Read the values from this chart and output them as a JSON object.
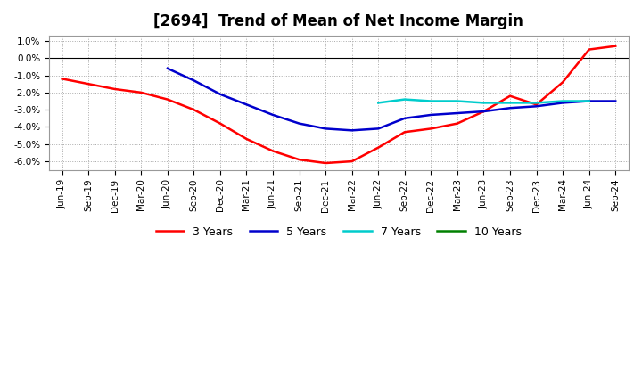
{
  "title": "[2694]  Trend of Mean of Net Income Margin",
  "yticks": [
    0.01,
    0.0,
    -0.01,
    -0.02,
    -0.03,
    -0.04,
    -0.05,
    -0.06
  ],
  "ytick_labels": [
    "1.0%",
    "0.0%",
    "-1.0%",
    "-2.0%",
    "-3.0%",
    "-4.0%",
    "-5.0%",
    "-6.0%"
  ],
  "ylim": [
    -0.065,
    0.013
  ],
  "x_labels": [
    "Jun-19",
    "Sep-19",
    "Dec-19",
    "Mar-20",
    "Jun-20",
    "Sep-20",
    "Dec-20",
    "Mar-21",
    "Jun-21",
    "Sep-21",
    "Dec-21",
    "Mar-22",
    "Jun-22",
    "Sep-22",
    "Dec-22",
    "Mar-23",
    "Jun-23",
    "Sep-23",
    "Dec-23",
    "Mar-24",
    "Jun-24",
    "Sep-24"
  ],
  "series": {
    "3 Years": {
      "color": "#FF0000",
      "linewidth": 1.8,
      "values": [
        -0.012,
        -0.015,
        -0.018,
        -0.02,
        -0.024,
        -0.03,
        -0.038,
        -0.047,
        -0.054,
        -0.059,
        -0.061,
        -0.06,
        -0.052,
        -0.043,
        -0.041,
        -0.038,
        -0.031,
        -0.022,
        -0.027,
        -0.014,
        0.005,
        0.007
      ]
    },
    "5 Years": {
      "color": "#0000CC",
      "linewidth": 1.8,
      "values": [
        null,
        null,
        null,
        null,
        -0.006,
        -0.013,
        -0.021,
        -0.027,
        -0.033,
        -0.038,
        -0.041,
        -0.042,
        -0.041,
        -0.035,
        -0.033,
        -0.032,
        -0.031,
        -0.029,
        -0.028,
        -0.026,
        -0.025,
        -0.025
      ]
    },
    "7 Years": {
      "color": "#00CCCC",
      "linewidth": 1.8,
      "values": [
        null,
        null,
        null,
        null,
        null,
        null,
        null,
        null,
        null,
        null,
        null,
        null,
        -0.026,
        -0.024,
        -0.025,
        -0.025,
        -0.026,
        -0.026,
        -0.026,
        -0.025,
        -0.025,
        null
      ]
    },
    "10 Years": {
      "color": "#008000",
      "linewidth": 1.8,
      "values": [
        null,
        null,
        null,
        null,
        null,
        null,
        null,
        null,
        null,
        null,
        null,
        null,
        null,
        null,
        null,
        null,
        null,
        null,
        null,
        null,
        null,
        null
      ]
    }
  },
  "background_color": "#FFFFFF",
  "plot_bg_color": "#FFFFFF",
  "grid_color": "#AAAAAA",
  "title_fontsize": 12,
  "axis_fontsize": 7.5,
  "legend_fontsize": 9
}
